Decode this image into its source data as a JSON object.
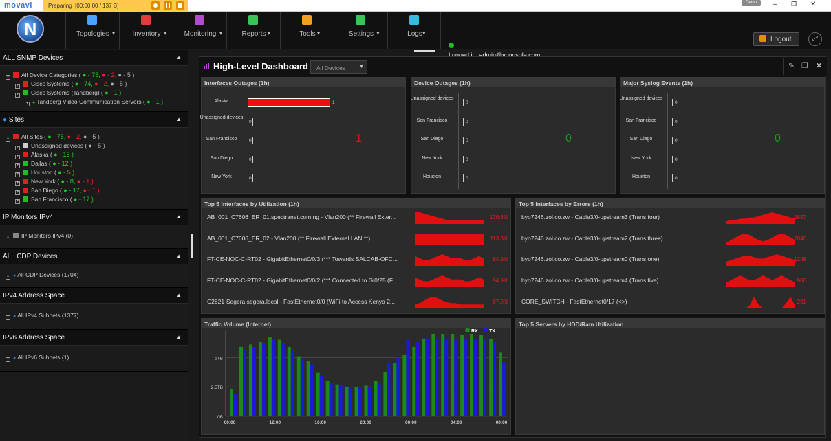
{
  "recorder": {
    "logo": "movavi",
    "status": "Preparing",
    "time": "[00:00:00 / 137 B]",
    "user_badge": "Demo"
  },
  "window_controls": {
    "minimize": "–",
    "maximize": "❐",
    "close": "✕"
  },
  "logo_letter": "N",
  "nav": [
    {
      "label": "Topologies",
      "icon": "topology-icon",
      "color": "#4aa3ff"
    },
    {
      "label": "Inventory",
      "icon": "inventory-icon",
      "color": "#e83a3a"
    },
    {
      "label": "Monitoring",
      "icon": "monitoring-icon",
      "color": "#b04ad8"
    },
    {
      "label": "Reports",
      "icon": "reports-icon",
      "color": "#3bc35a"
    },
    {
      "label": "Tools",
      "icon": "tools-icon",
      "color": "#f2a020"
    },
    {
      "label": "Settings",
      "icon": "settings-icon",
      "color": "#3bc35a"
    },
    {
      "label": "Logs",
      "icon": "logs-icon",
      "color": "#3ab8e0"
    }
  ],
  "logged_in": "Logged in: admin@vconsole.com",
  "logout": "Logout",
  "sidebar": {
    "snmp": {
      "title": "ALL SNMP Devices",
      "rows": [
        {
          "label": "All Device Categories (",
          "g": "● - 75,",
          "r": "● - 2,",
          "gr": "● - 5 )",
          "indent": 0,
          "sq": "#d22"
        },
        {
          "label": "Cisco Systems (",
          "g": "● - 74,",
          "r": "● - 2,",
          "gr": "● - 5 )",
          "indent": 1,
          "sq": "#d22"
        },
        {
          "label": "Cisco Systems (Tandberg) (",
          "g": "● - 1 )",
          "r": "",
          "gr": "",
          "indent": 1,
          "sq": "#2b2"
        },
        {
          "label": "Tandberg Video Communication Servers (",
          "g": "● - 1 )",
          "r": "",
          "gr": "",
          "indent": 2,
          "sq": ""
        }
      ]
    },
    "sites": {
      "title": "Sites",
      "rows": [
        {
          "label": "All Sites (",
          "g": "● - 75,",
          "r": "● - 2,",
          "gr": "● - 5 )",
          "indent": 0,
          "sq": "#d22"
        },
        {
          "label": "Unassigned devices (",
          "g": "",
          "r": "",
          "gr": "● - 5 )",
          "indent": 1,
          "sq": "#ccc"
        },
        {
          "label": "Alaska (",
          "g": "● - 16 )",
          "r": "",
          "gr": "",
          "indent": 1,
          "sq": "#d22"
        },
        {
          "label": "Dallas (",
          "g": "● - 12 )",
          "r": "",
          "gr": "",
          "indent": 1,
          "sq": "#2b2"
        },
        {
          "label": "Houston (",
          "g": "● - 5 )",
          "r": "",
          "gr": "",
          "indent": 1,
          "sq": "#2b2"
        },
        {
          "label": "New York (",
          "g": "● - 8,",
          "r": "● - 1 )",
          "gr": "",
          "indent": 1,
          "sq": "#d22"
        },
        {
          "label": "San Diego (",
          "g": "● - 17,",
          "r": "● - 1 )",
          "gr": "",
          "indent": 1,
          "sq": "#d22"
        },
        {
          "label": "San Francisco (",
          "g": "● - 17 )",
          "r": "",
          "gr": "",
          "indent": 1,
          "sq": "#2b2"
        }
      ]
    },
    "ipmon": {
      "title": "IP Monitors IPv4",
      "rows": [
        {
          "label": "IP Monitors IPv4 (0)",
          "indent": 0,
          "sq": "#888"
        }
      ]
    },
    "cdp": {
      "title": "ALL CDP Devices",
      "rows": [
        {
          "label": "All CDP Devices (1704)",
          "indent": 0,
          "sq": ""
        }
      ]
    },
    "ipv4": {
      "title": "IPv4 Address Space",
      "rows": [
        {
          "label": "All IPv4 Subnets (1377)",
          "indent": 0,
          "sq": ""
        }
      ]
    },
    "ipv6": {
      "title": "IPv6 Address Space",
      "rows": [
        {
          "label": "All IPv6 Subnets (1)",
          "indent": 0,
          "sq": ""
        }
      ]
    }
  },
  "dashboard": {
    "title": "High-Level Dashboard",
    "device_filter": "All Devices"
  },
  "interfaces_outages": {
    "title": "Interfaces Outages (1h)",
    "categories": [
      "Alaska",
      "Unassigned devices",
      "San Francisco",
      "San Diego",
      "New York"
    ],
    "values": [
      1,
      0,
      0,
      0,
      0
    ],
    "total": "1",
    "color": "#e81010"
  },
  "device_outages": {
    "title": "Device Outages (1h)",
    "categories": [
      "Unassigned devices",
      "San Francisco",
      "San Diego",
      "New York",
      "Houston"
    ],
    "values": [
      0,
      0,
      0,
      0,
      0
    ],
    "total": "0",
    "color": "#1a9a1a"
  },
  "syslog_events": {
    "title": "Major Syslog Events (1h)",
    "categories": [
      "Unassigned devices",
      "San Francisco",
      "San Diego",
      "New York",
      "Houston"
    ],
    "values": [
      0,
      0,
      0,
      0,
      0
    ],
    "total": "0",
    "color": "#1a9a1a"
  },
  "top_util": {
    "title": "Top 5 Interfaces by Utilization (1h)",
    "rows": [
      {
        "name": "AB_001_C7606_ER_01.spectranet.com.ng - Vlan200 (** Firewall Exter...",
        "value": "170.6%",
        "spark": [
          9,
          9,
          8,
          7,
          6,
          5,
          4,
          3,
          3,
          3,
          3,
          3,
          3,
          3,
          3,
          3
        ]
      },
      {
        "name": "AB_001_C7606_ER_02 - Vlan200 (** Firewall External LAN **)",
        "value": "113.3%",
        "spark": [
          5,
          5,
          5,
          5,
          5,
          5,
          5,
          5,
          5,
          5,
          5,
          5,
          5,
          5,
          5,
          5
        ]
      },
      {
        "name": "FT-CE-NOC-C-RT02 - GigabitEthernet0/0/3 (*** Towards SALCAB-OFC...",
        "value": "94.9%",
        "spark": [
          5,
          4,
          3,
          3,
          4,
          5,
          6,
          5,
          4,
          4,
          4,
          3,
          3,
          4,
          5,
          4
        ]
      },
      {
        "name": "FT-CE-NOC-C-RT02 - GigabitEthernet0/0/2 (*** Connected to Gi0/25 (F...",
        "value": "94.9%",
        "spark": [
          5,
          4,
          3,
          3,
          4,
          5,
          6,
          5,
          4,
          4,
          4,
          3,
          3,
          4,
          5,
          4
        ]
      },
      {
        "name": "C2621-Segera.segera.local - FastEthernet0/0 (WiFi to Access Kenya 2...",
        "value": "87.0%",
        "spark": [
          3,
          4,
          6,
          8,
          9,
          8,
          6,
          5,
          4,
          4,
          3,
          3,
          3,
          3,
          3,
          3
        ]
      }
    ]
  },
  "top_errors": {
    "title": "Top 5 Interfaces by Errors (1h)",
    "rows": [
      {
        "name": "byo7246.zol.co.zw - Cable3/0-upstream3 (Trans four)",
        "value": "2857",
        "spark": [
          2,
          3,
          3,
          4,
          4,
          5,
          5,
          6,
          7,
          8,
          9,
          8,
          7,
          6,
          5,
          4
        ]
      },
      {
        "name": "byo7246.zol.co.zw - Cable3/0-upstream2 (Trans three)",
        "value": "2046",
        "spark": [
          2,
          4,
          6,
          8,
          9,
          8,
          6,
          4,
          3,
          4,
          6,
          8,
          9,
          8,
          6,
          4
        ]
      },
      {
        "name": "byo7246.zol.co.zw - Cable3/0-upstream0 (Trans one)",
        "value": "1248",
        "spark": [
          3,
          4,
          5,
          6,
          7,
          7,
          6,
          5,
          5,
          6,
          7,
          8,
          7,
          6,
          5,
          4
        ]
      },
      {
        "name": "byo7246.zol.co.zw - Cable3/0-upstream4 (Trans five)",
        "value": "906",
        "spark": [
          2,
          3,
          4,
          5,
          4,
          3,
          3,
          4,
          5,
          4,
          3,
          4,
          5,
          4,
          3,
          2
        ]
      },
      {
        "name": "CORE_SWITCH - FastEthernet0/17 (<>)",
        "value": "291",
        "spark": [
          0,
          0,
          0,
          0,
          0,
          2,
          9,
          3,
          0,
          0,
          0,
          0,
          0,
          4,
          9,
          2
        ]
      }
    ]
  },
  "traffic": {
    "title": "Traffic Volume (Internet)",
    "chart_data": {
      "type": "bar",
      "yticks": [
        "5TB",
        "2.5TB",
        "0B"
      ],
      "xticks": [
        "00:00",
        "12:00",
        "16:00",
        "20:00",
        "00:00",
        "04:00",
        "00:00"
      ],
      "ylim": [
        0,
        7
      ],
      "series": [
        {
          "name": "RX",
          "color": "#1a8a1a",
          "values": [
            2.3,
            5.9,
            6.1,
            6.3,
            6.7,
            6.5,
            5.9,
            5.1,
            4.7,
            3.7,
            3.0,
            2.7,
            2.5,
            2.5,
            2.6,
            3.0,
            3.8,
            4.5,
            5.2,
            5.9,
            6.6,
            7.0,
            7.0,
            7.0,
            6.9,
            7.0,
            6.9,
            6.6,
            5.4
          ]
        },
        {
          "name": "TX",
          "color": "#1a1ad8",
          "values": [
            1.9,
            5.7,
            5.9,
            6.2,
            6.5,
            6.2,
            5.6,
            4.9,
            4.4,
            3.5,
            2.8,
            2.6,
            2.4,
            2.4,
            2.5,
            2.8,
            4.5,
            5.0,
            6.5,
            6.3,
            6.6,
            6.6,
            6.6,
            6.5,
            6.6,
            6.6,
            6.5,
            6.3,
            4.6
          ]
        }
      ]
    }
  },
  "top_servers": {
    "title": "Top 5 Servers by HDD/Ram Utilization"
  }
}
